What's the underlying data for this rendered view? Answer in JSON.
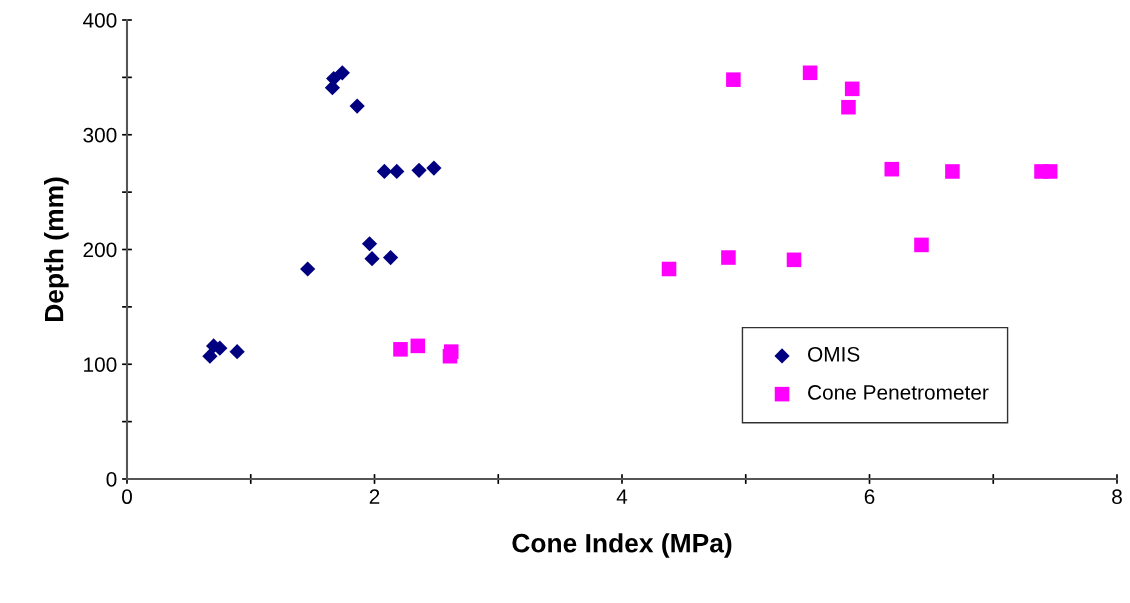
{
  "chart_data": {
    "type": "scatter",
    "xlabel": "Cone Index (MPa)",
    "ylabel": "Depth (mm)",
    "xlim": [
      0,
      8
    ],
    "ylim": [
      0,
      400
    ],
    "xticks": [
      0,
      {
        "value": 1,
        "label": null
      },
      2,
      {
        "value": 3,
        "label": null
      },
      4,
      {
        "value": 5,
        "label": null
      },
      6,
      {
        "value": 7,
        "label": null
      },
      8
    ],
    "yticks": [
      0,
      {
        "value": 50,
        "label": null
      },
      100,
      {
        "value": 150,
        "label": null
      },
      200,
      {
        "value": 250,
        "label": null
      },
      300,
      {
        "value": 350,
        "label": null
      },
      400
    ],
    "grid": false,
    "legend": "bottom right",
    "series": [
      {
        "name": "OMIS",
        "color": "#000080",
        "marker": "diamond",
        "x": [
          0.67,
          0.7,
          0.75,
          0.89,
          1.46,
          1.66,
          1.67,
          1.74,
          1.86,
          1.96,
          1.98,
          2.08,
          2.18,
          2.13,
          2.36,
          2.48
        ],
        "values": [
          107,
          116,
          114,
          111,
          183,
          341,
          349,
          354,
          325,
          205,
          192,
          268,
          268,
          193,
          269,
          271
        ]
      },
      {
        "name": "Cone Penetrometer",
        "color": "#ff00ff",
        "marker": "square",
        "x": [
          2.21,
          2.35,
          2.61,
          2.62,
          4.38,
          4.86,
          4.9,
          5.39,
          5.52,
          5.83,
          5.86,
          6.18,
          6.42,
          6.67,
          7.39,
          7.46
        ],
        "values": [
          113,
          116,
          107,
          111,
          183,
          193,
          348,
          191,
          354,
          324,
          340,
          270,
          204,
          268,
          268,
          268
        ]
      }
    ]
  }
}
